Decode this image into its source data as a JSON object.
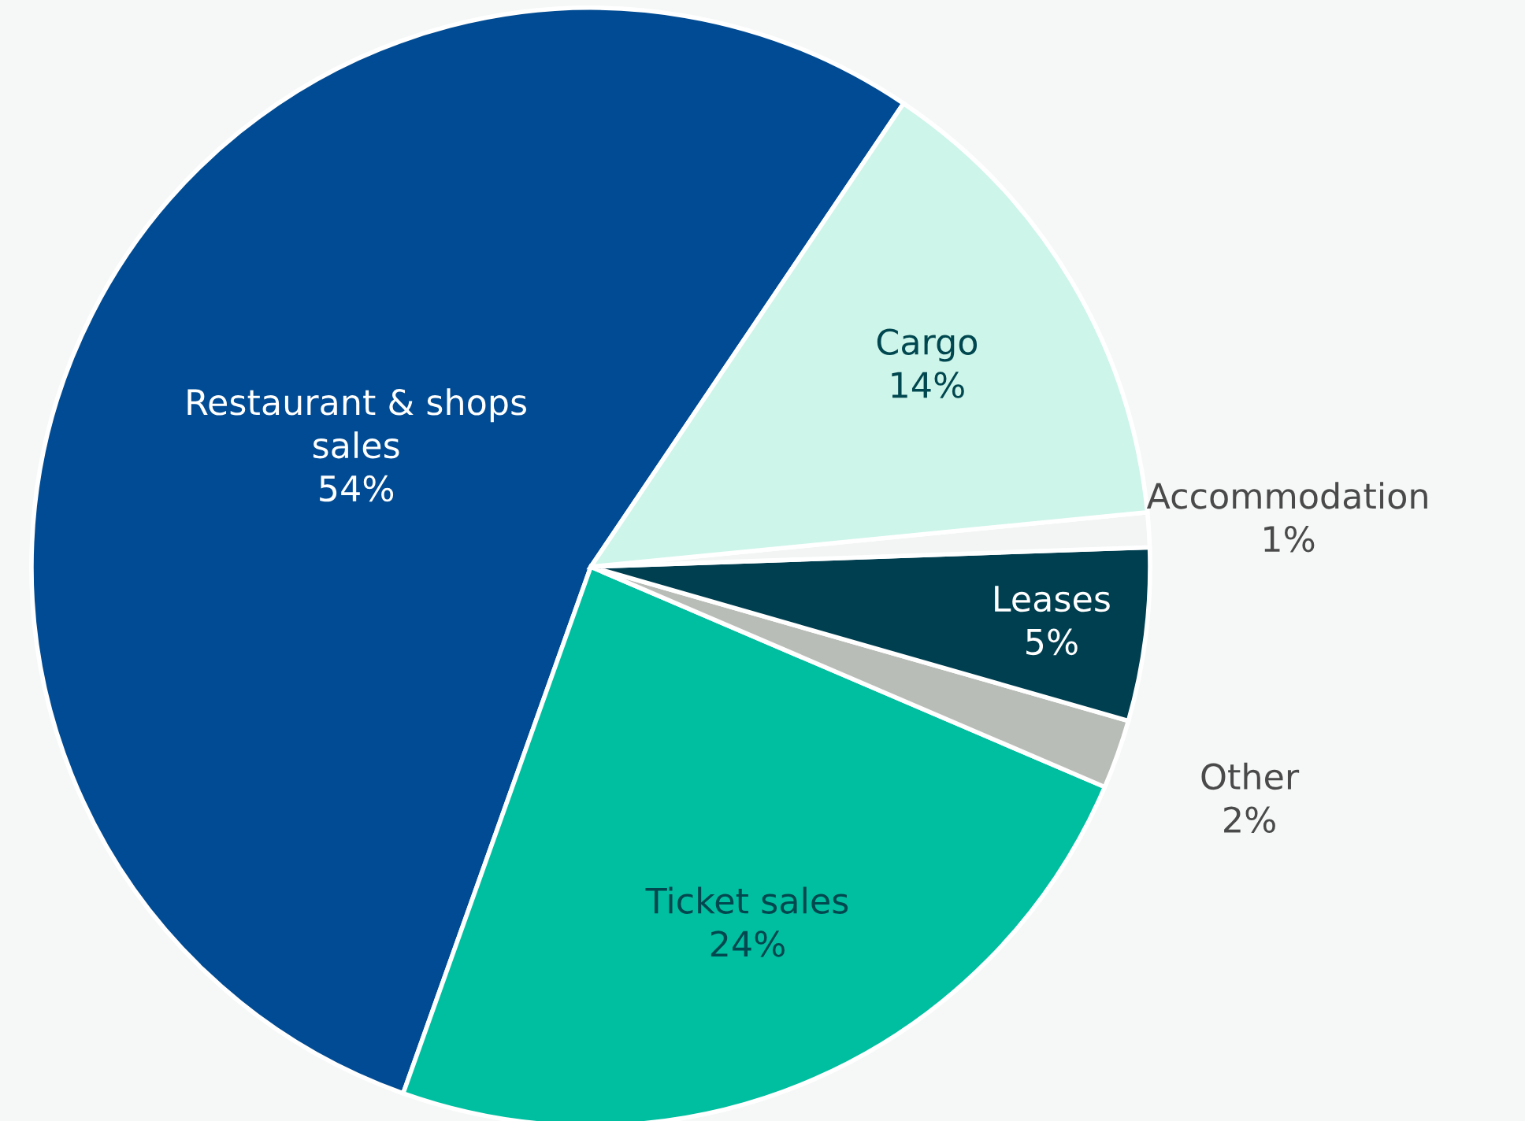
{
  "chart_data": {
    "type": "pie",
    "categories": [
      "Restaurant & shops\nsales",
      "Ticket sales",
      "Other",
      "Leases",
      "Accommodation",
      "Cargo"
    ],
    "values": [
      54,
      24,
      2,
      5,
      1,
      14
    ],
    "value_labels": [
      "54%",
      "24%",
      "2%",
      "5%",
      "1%",
      "14%"
    ],
    "colors": [
      "#004b93",
      "#00bfa0",
      "#b9bdb8",
      "#003f50",
      "#f3f5f5",
      "#cdf5ea"
    ],
    "legend": false
  }
}
